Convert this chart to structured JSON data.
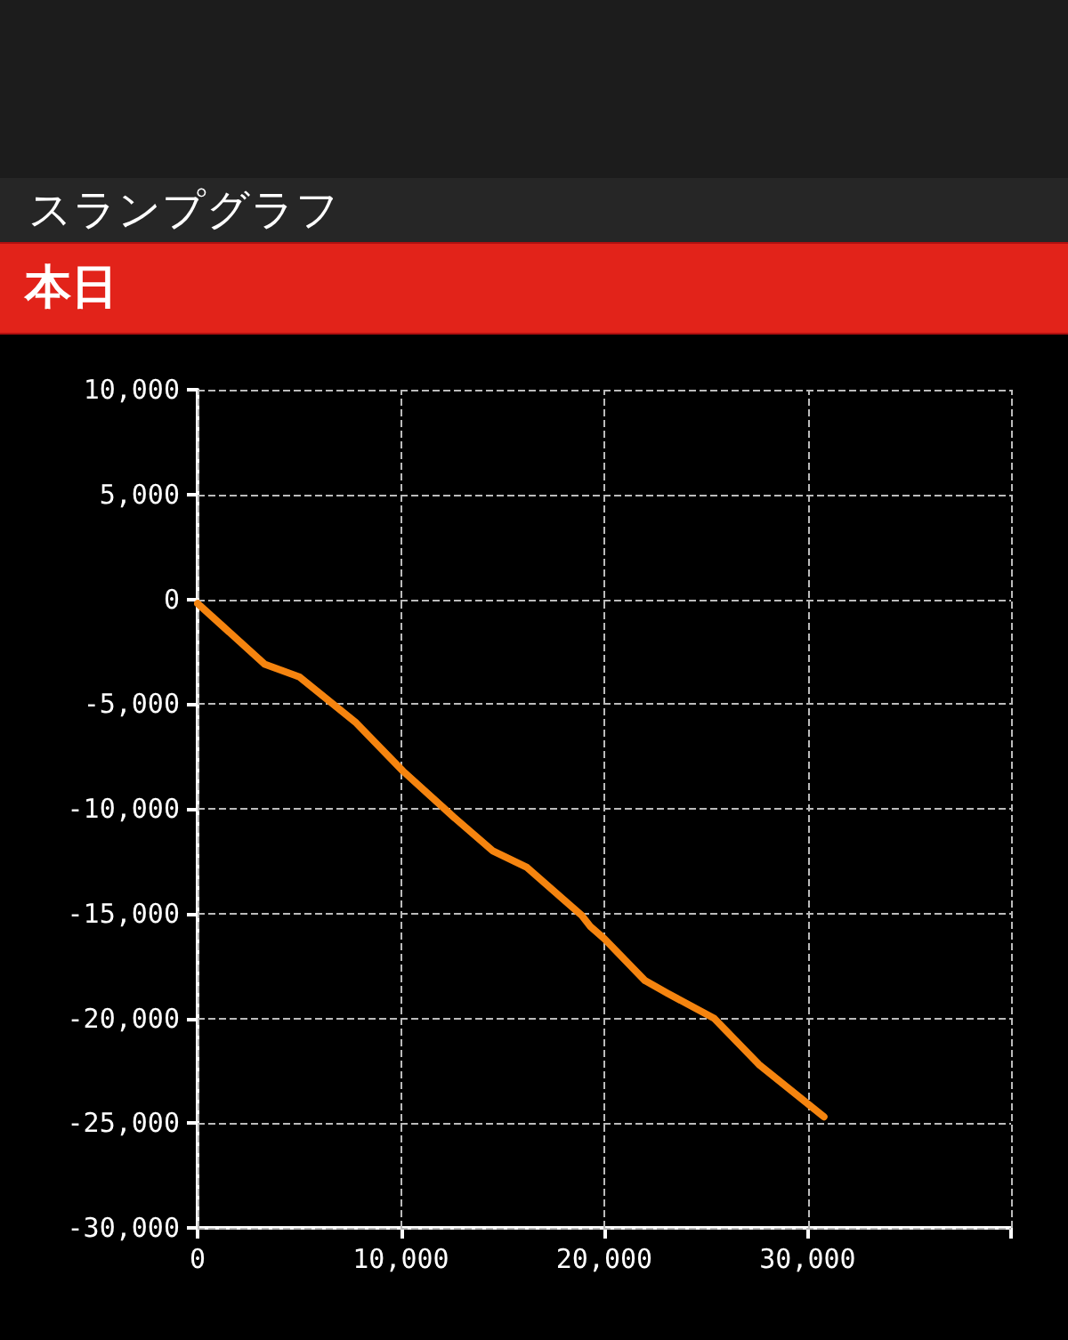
{
  "chart_data": {
    "type": "line",
    "title": "スランプグラフ",
    "subtitle": "本日",
    "x": [
      0,
      3300,
      5000,
      7800,
      10100,
      12600,
      14500,
      16200,
      18900,
      19300,
      20000,
      22000,
      23100,
      25400,
      27600,
      30800
    ],
    "series": [
      {
        "color": "#f5840f",
        "values": [
          -200,
          -3100,
          -3700,
          -5900,
          -8200,
          -10400,
          -12000,
          -12800,
          -15100,
          -15600,
          -16200,
          -18200,
          -18800,
          -20000,
          -22200,
          -24700
        ]
      }
    ],
    "xlim": [
      0,
      40000
    ],
    "xticks": [
      {
        "value": 0,
        "label": "0"
      },
      {
        "value": 10000,
        "label": "10,000"
      },
      {
        "value": 20000,
        "label": "20,000"
      },
      {
        "value": 30000,
        "label": "30,000"
      },
      {
        "value": 40000,
        "label": null
      }
    ],
    "ylim": [
      -30000,
      10000
    ],
    "yticks": [
      {
        "value": -30000,
        "label": "-30,000"
      },
      {
        "value": -25000,
        "label": "-25,000"
      },
      {
        "value": -20000,
        "label": "-20,000"
      },
      {
        "value": -15000,
        "label": "-15,000"
      },
      {
        "value": -10000,
        "label": "-10,000"
      },
      {
        "value": -5000,
        "label": "-5,000"
      },
      {
        "value": 0,
        "label": "0"
      },
      {
        "value": 5000,
        "label": "5,000"
      },
      {
        "value": 10000,
        "label": "10,000"
      }
    ],
    "grid": true,
    "marker": "none",
    "line_style": "solid"
  }
}
